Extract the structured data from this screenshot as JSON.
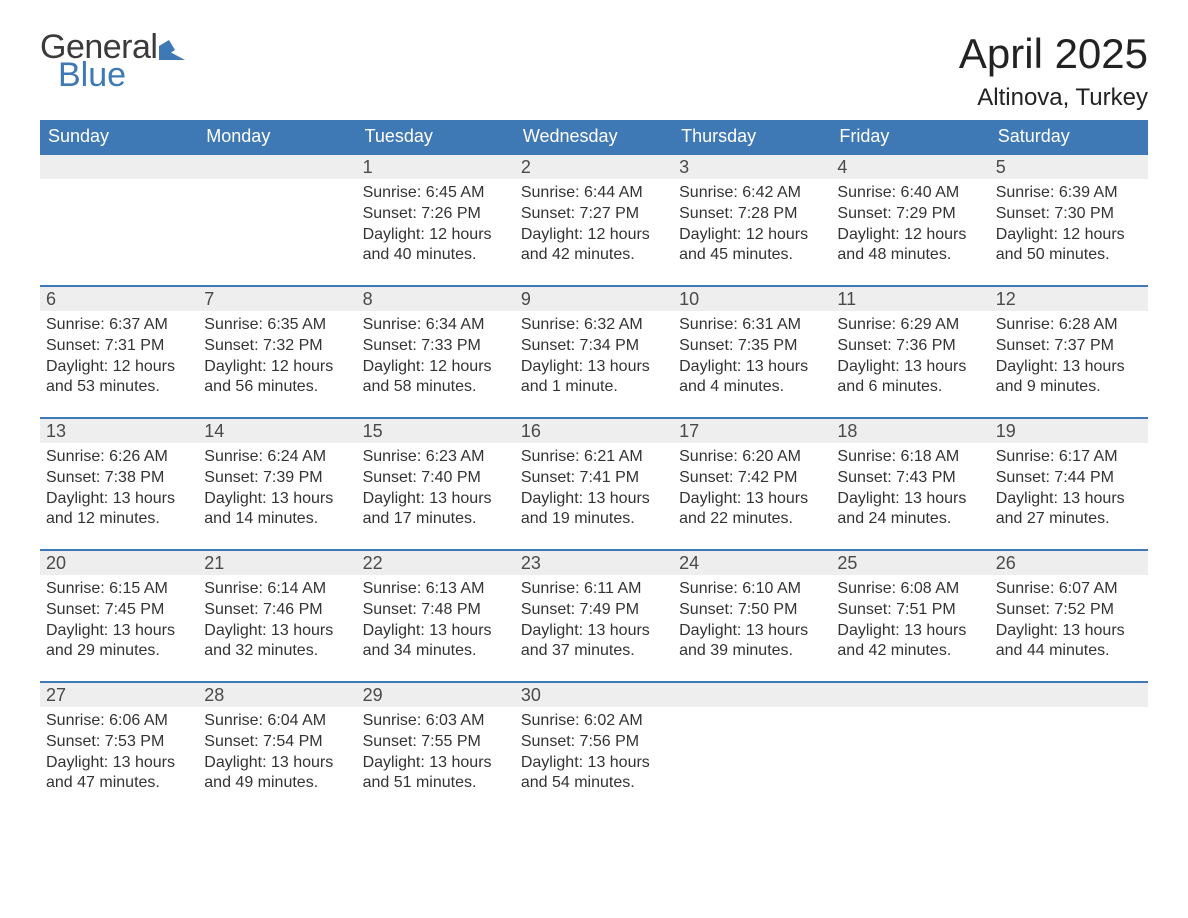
{
  "logo": {
    "text_general": "General",
    "text_blue": "Blue",
    "triangle_color": "#3f79b5"
  },
  "title": {
    "month": "April 2025",
    "location": "Altinova, Turkey"
  },
  "colors": {
    "header_bg": "#3f79b5",
    "header_text": "#ffffff",
    "daynum_bg": "#eeeeee",
    "daynum_border": "#3f79b5",
    "text_color": "#333333",
    "logo_gray": "#3a3a3a",
    "logo_blue": "#3f79b5",
    "background": "#ffffff"
  },
  "typography": {
    "title_fontsize": 42,
    "location_fontsize": 24,
    "header_fontsize": 18,
    "daynum_fontsize": 18,
    "body_fontsize": 16
  },
  "day_headers": [
    "Sunday",
    "Monday",
    "Tuesday",
    "Wednesday",
    "Thursday",
    "Friday",
    "Saturday"
  ],
  "weeks": [
    [
      null,
      null,
      {
        "num": "1",
        "sunrise": "6:45 AM",
        "sunset": "7:26 PM",
        "daylight": "12 hours and 40 minutes."
      },
      {
        "num": "2",
        "sunrise": "6:44 AM",
        "sunset": "7:27 PM",
        "daylight": "12 hours and 42 minutes."
      },
      {
        "num": "3",
        "sunrise": "6:42 AM",
        "sunset": "7:28 PM",
        "daylight": "12 hours and 45 minutes."
      },
      {
        "num": "4",
        "sunrise": "6:40 AM",
        "sunset": "7:29 PM",
        "daylight": "12 hours and 48 minutes."
      },
      {
        "num": "5",
        "sunrise": "6:39 AM",
        "sunset": "7:30 PM",
        "daylight": "12 hours and 50 minutes."
      }
    ],
    [
      {
        "num": "6",
        "sunrise": "6:37 AM",
        "sunset": "7:31 PM",
        "daylight": "12 hours and 53 minutes."
      },
      {
        "num": "7",
        "sunrise": "6:35 AM",
        "sunset": "7:32 PM",
        "daylight": "12 hours and 56 minutes."
      },
      {
        "num": "8",
        "sunrise": "6:34 AM",
        "sunset": "7:33 PM",
        "daylight": "12 hours and 58 minutes."
      },
      {
        "num": "9",
        "sunrise": "6:32 AM",
        "sunset": "7:34 PM",
        "daylight": "13 hours and 1 minute."
      },
      {
        "num": "10",
        "sunrise": "6:31 AM",
        "sunset": "7:35 PM",
        "daylight": "13 hours and 4 minutes."
      },
      {
        "num": "11",
        "sunrise": "6:29 AM",
        "sunset": "7:36 PM",
        "daylight": "13 hours and 6 minutes."
      },
      {
        "num": "12",
        "sunrise": "6:28 AM",
        "sunset": "7:37 PM",
        "daylight": "13 hours and 9 minutes."
      }
    ],
    [
      {
        "num": "13",
        "sunrise": "6:26 AM",
        "sunset": "7:38 PM",
        "daylight": "13 hours and 12 minutes."
      },
      {
        "num": "14",
        "sunrise": "6:24 AM",
        "sunset": "7:39 PM",
        "daylight": "13 hours and 14 minutes."
      },
      {
        "num": "15",
        "sunrise": "6:23 AM",
        "sunset": "7:40 PM",
        "daylight": "13 hours and 17 minutes."
      },
      {
        "num": "16",
        "sunrise": "6:21 AM",
        "sunset": "7:41 PM",
        "daylight": "13 hours and 19 minutes."
      },
      {
        "num": "17",
        "sunrise": "6:20 AM",
        "sunset": "7:42 PM",
        "daylight": "13 hours and 22 minutes."
      },
      {
        "num": "18",
        "sunrise": "6:18 AM",
        "sunset": "7:43 PM",
        "daylight": "13 hours and 24 minutes."
      },
      {
        "num": "19",
        "sunrise": "6:17 AM",
        "sunset": "7:44 PM",
        "daylight": "13 hours and 27 minutes."
      }
    ],
    [
      {
        "num": "20",
        "sunrise": "6:15 AM",
        "sunset": "7:45 PM",
        "daylight": "13 hours and 29 minutes."
      },
      {
        "num": "21",
        "sunrise": "6:14 AM",
        "sunset": "7:46 PM",
        "daylight": "13 hours and 32 minutes."
      },
      {
        "num": "22",
        "sunrise": "6:13 AM",
        "sunset": "7:48 PM",
        "daylight": "13 hours and 34 minutes."
      },
      {
        "num": "23",
        "sunrise": "6:11 AM",
        "sunset": "7:49 PM",
        "daylight": "13 hours and 37 minutes."
      },
      {
        "num": "24",
        "sunrise": "6:10 AM",
        "sunset": "7:50 PM",
        "daylight": "13 hours and 39 minutes."
      },
      {
        "num": "25",
        "sunrise": "6:08 AM",
        "sunset": "7:51 PM",
        "daylight": "13 hours and 42 minutes."
      },
      {
        "num": "26",
        "sunrise": "6:07 AM",
        "sunset": "7:52 PM",
        "daylight": "13 hours and 44 minutes."
      }
    ],
    [
      {
        "num": "27",
        "sunrise": "6:06 AM",
        "sunset": "7:53 PM",
        "daylight": "13 hours and 47 minutes."
      },
      {
        "num": "28",
        "sunrise": "6:04 AM",
        "sunset": "7:54 PM",
        "daylight": "13 hours and 49 minutes."
      },
      {
        "num": "29",
        "sunrise": "6:03 AM",
        "sunset": "7:55 PM",
        "daylight": "13 hours and 51 minutes."
      },
      {
        "num": "30",
        "sunrise": "6:02 AM",
        "sunset": "7:56 PM",
        "daylight": "13 hours and 54 minutes."
      },
      null,
      null,
      null
    ]
  ],
  "labels": {
    "sunrise_prefix": "Sunrise: ",
    "sunset_prefix": "Sunset: ",
    "daylight_prefix": "Daylight: "
  }
}
